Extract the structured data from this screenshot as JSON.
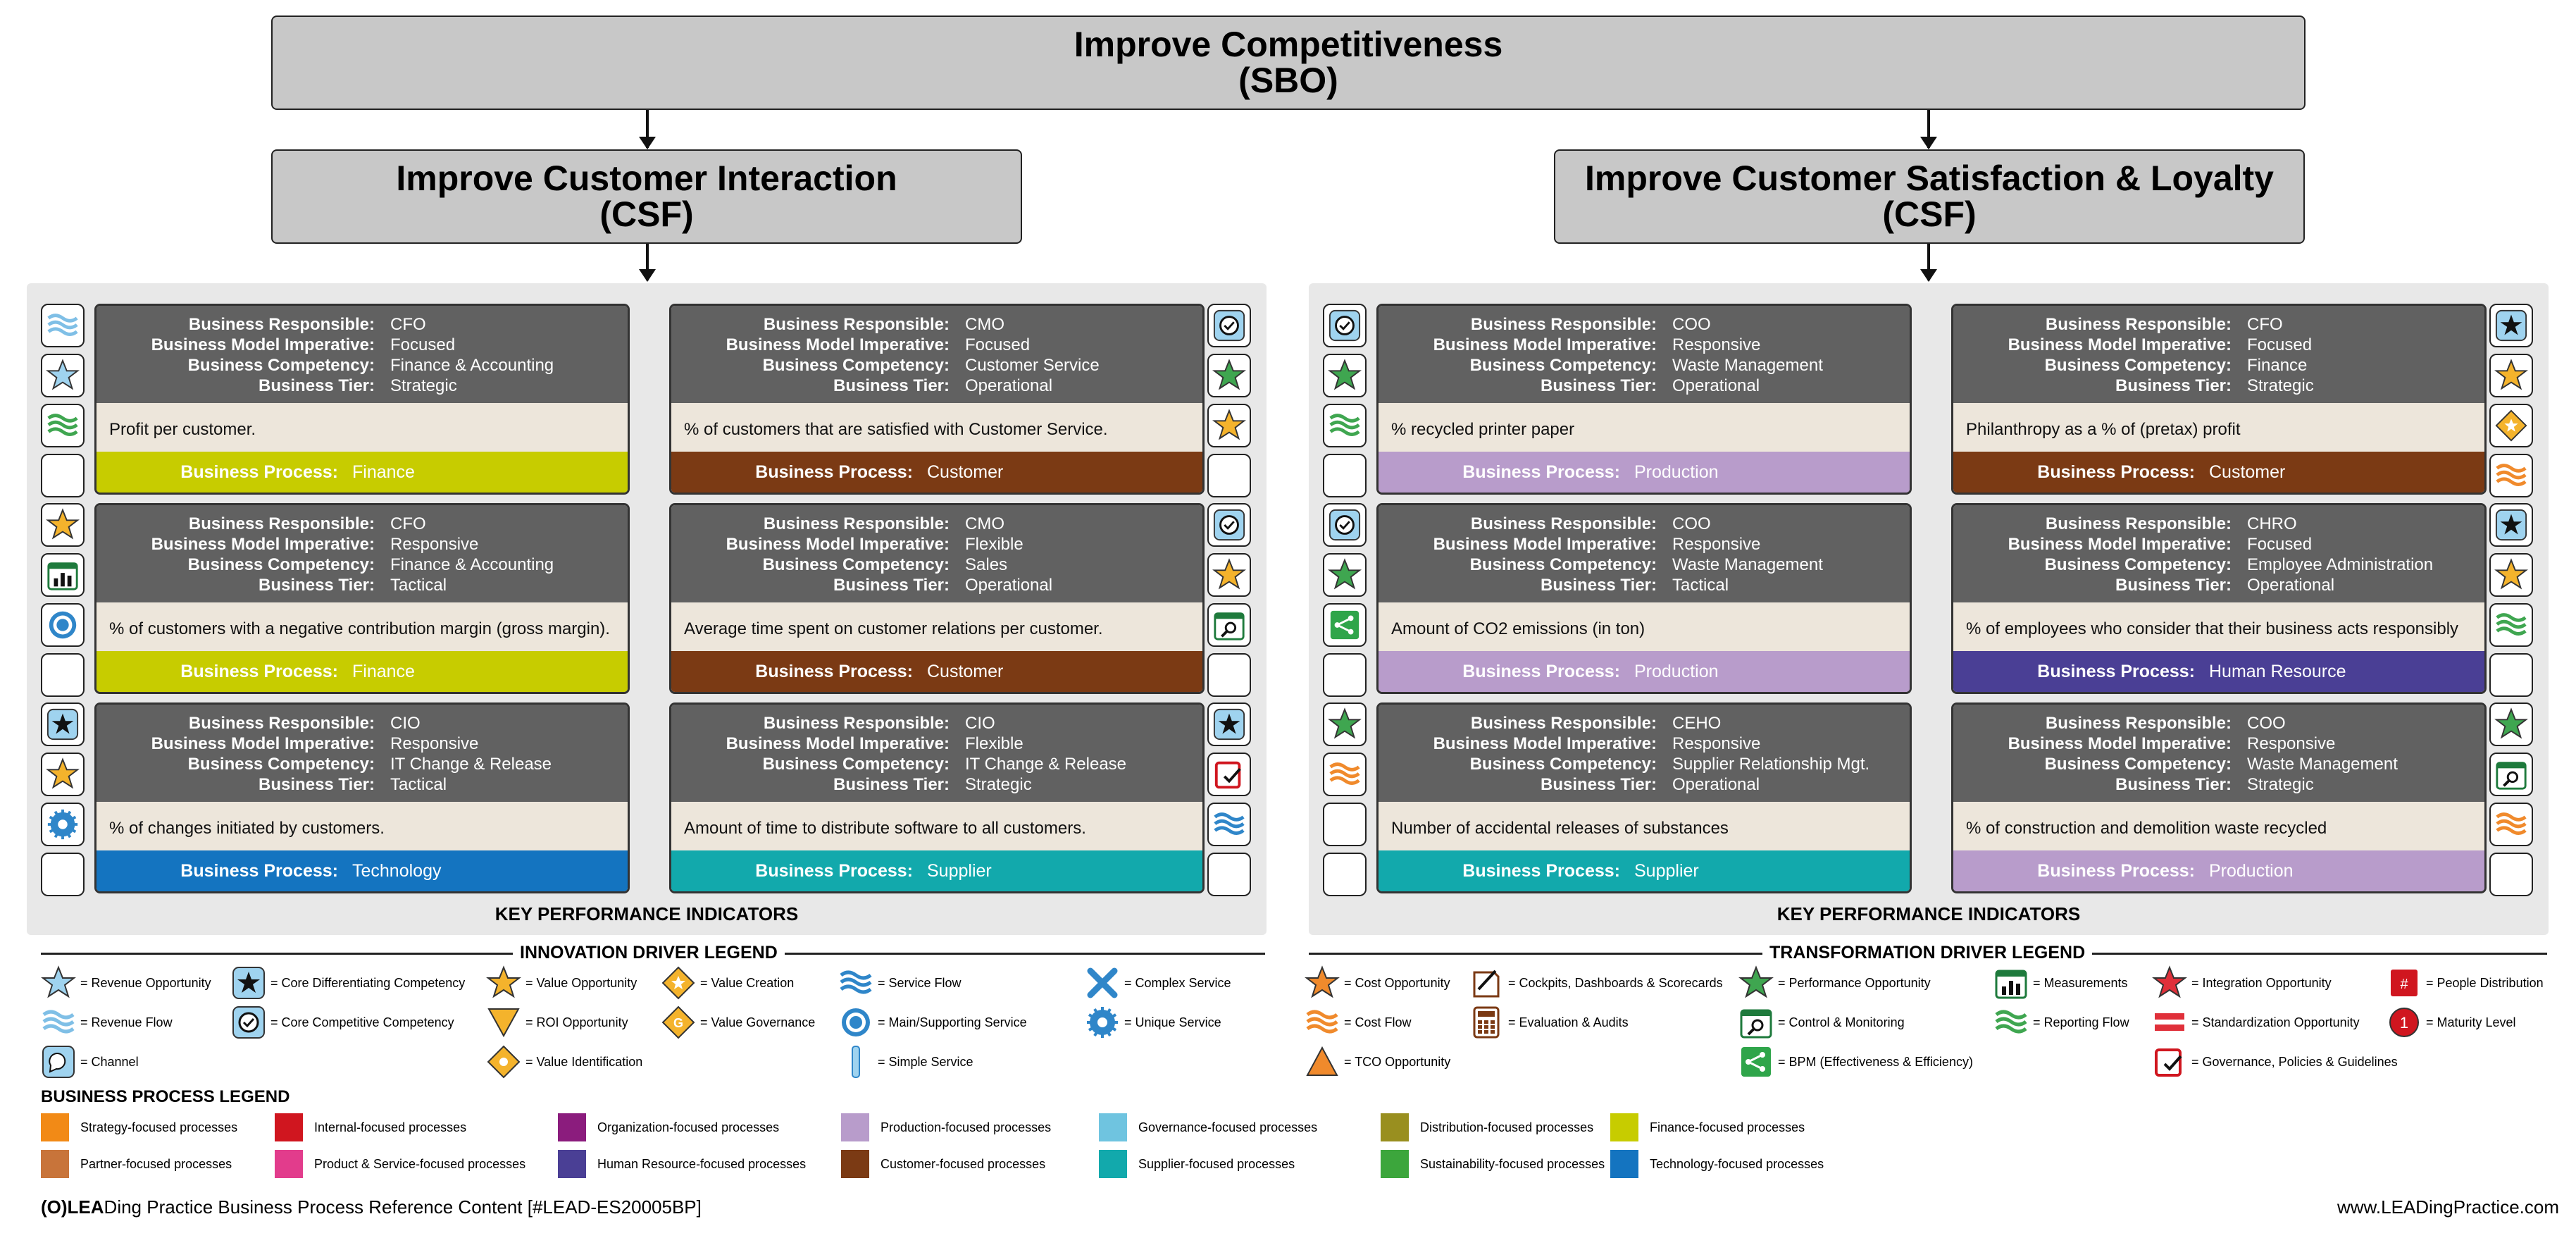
{
  "sbo": {
    "title": "Improve Competitiveness",
    "tag": "(SBO)"
  },
  "csf_left": {
    "title": "Improve Customer Interaction",
    "tag": "(CSF)"
  },
  "csf_right": {
    "title": "Improve Customer Satisfaction & Loyalty",
    "tag": "(CSF)"
  },
  "labels": {
    "responsible": "Business Responsible:",
    "imperative": "Business Model Imperative:",
    "competency": "Business Competency:",
    "tier": "Business Tier:",
    "process": "Business Process:"
  },
  "kpi_title": "KEY PERFORMANCE INDICATORS",
  "cards": [
    {
      "resp": "CFO",
      "imp": "Focused",
      "comp": "Finance & Accounting",
      "tier": "Strategic",
      "kpi": "Profit per customer.",
      "process": "Finance",
      "color": "#c7cc00",
      "icons": [
        "revenue-flow",
        "revenue-opportunity",
        "reporting-flow",
        "empty"
      ]
    },
    {
      "resp": "CMO",
      "imp": "Focused",
      "comp": "Customer Service",
      "tier": "Operational",
      "kpi": "% of customers that are satisfied with Customer Service.",
      "process": "Customer",
      "color": "#7b3a14",
      "icons": [
        "core-competitive",
        "performance-opportunity",
        "value-opportunity",
        "empty"
      ]
    },
    {
      "resp": "CFO",
      "imp": "Responsive",
      "comp": "Finance & Accounting",
      "tier": "Tactical",
      "kpi": "% of customers with a negative contribution margin (gross margin).",
      "process": "Finance",
      "color": "#c7cc00",
      "icons": [
        "value-opportunity",
        "measurements",
        "main-service",
        "empty"
      ]
    },
    {
      "resp": "CMO",
      "imp": "Flexible",
      "comp": "Sales",
      "tier": "Operational",
      "kpi": "Average time spent on customer relations per customer.",
      "process": "Customer",
      "color": "#7b3a14",
      "icons": [
        "core-competitive",
        "value-opportunity",
        "control-monitoring",
        "empty"
      ]
    },
    {
      "resp": "CIO",
      "imp": "Responsive",
      "comp": "IT Change & Release",
      "tier": "Tactical",
      "kpi": "% of changes initiated by customers.",
      "process": "Technology",
      "color": "#1474c0",
      "icons": [
        "core-differentiating",
        "value-opportunity",
        "unique-service",
        "empty"
      ]
    },
    {
      "resp": "CIO",
      "imp": "Flexible",
      "comp": "IT Change & Release",
      "tier": "Strategic",
      "kpi": "Amount of time to distribute software to all customers.",
      "process": "Supplier",
      "color": "#12a9ac",
      "icons": [
        "core-differentiating",
        "governance",
        "service-flow",
        "empty"
      ]
    },
    {
      "resp": "COO",
      "imp": "Responsive",
      "comp": "Waste Management",
      "tier": "Operational",
      "kpi": "% recycled printer paper",
      "process": "Production",
      "color": "#b89ccb",
      "icons": [
        "core-competitive",
        "performance-opportunity",
        "reporting-flow",
        "empty"
      ]
    },
    {
      "resp": "CFO",
      "imp": "Focused",
      "comp": "Finance",
      "tier": "Strategic",
      "kpi": "Philanthropy as a % of (pretax) profit",
      "process": "Customer",
      "color": "#7b3a14",
      "icons": [
        "core-differentiating",
        "value-opportunity",
        "value-creation",
        "cost-flow"
      ]
    },
    {
      "resp": "COO",
      "imp": "Responsive",
      "comp": "Waste Management",
      "tier": "Tactical",
      "kpi": "Amount of CO2 emissions (in ton)",
      "process": "Production",
      "color": "#b89ccb",
      "icons": [
        "core-competitive",
        "performance-opportunity",
        "bpm",
        "empty"
      ]
    },
    {
      "resp": "CHRO",
      "imp": "Focused",
      "comp": "Employee Administration",
      "tier": "Operational",
      "kpi": "% of employees who consider that their business acts responsibly",
      "process": "Human Resource",
      "color": "#4a3f95",
      "icons": [
        "core-differentiating",
        "value-opportunity",
        "reporting-flow",
        "empty"
      ]
    },
    {
      "resp": "CEHO",
      "imp": "Responsive",
      "comp": "Supplier Relationship Mgt.",
      "tier": "Operational",
      "kpi": "Number of accidental releases of substances",
      "process": "Supplier",
      "color": "#12a9ac",
      "icons": [
        "performance-opportunity",
        "cost-flow",
        "empty",
        "empty"
      ]
    },
    {
      "resp": "COO",
      "imp": "Responsive",
      "comp": "Waste Management",
      "tier": "Strategic",
      "kpi": "% of construction and demolition waste recycled",
      "process": "Production",
      "color": "#b89ccb",
      "icons": [
        "performance-opportunity",
        "control-monitoring",
        "cost-flow",
        "empty"
      ]
    }
  ],
  "innovation_legend": {
    "title": "INNOVATION DRIVER LEGEND",
    "items": [
      {
        "icon": "revenue-opportunity",
        "label": "= Revenue Opportunity"
      },
      {
        "icon": "core-differentiating",
        "label": "= Core Differentiating Competency"
      },
      {
        "icon": "value-opportunity",
        "label": "= Value Opportunity"
      },
      {
        "icon": "value-creation",
        "label": "= Value Creation"
      },
      {
        "icon": "service-flow",
        "label": "= Service Flow"
      },
      {
        "icon": "complex-service",
        "label": "= Complex Service"
      },
      {
        "icon": "revenue-flow",
        "label": "= Revenue Flow"
      },
      {
        "icon": "core-competitive",
        "label": "= Core Competitive Competency"
      },
      {
        "icon": "roi-opportunity",
        "label": "= ROI Opportunity"
      },
      {
        "icon": "value-governance",
        "label": "= Value Governance"
      },
      {
        "icon": "main-service",
        "label": "= Main/Supporting Service"
      },
      {
        "icon": "unique-service",
        "label": "= Unique Service"
      },
      {
        "icon": "channel",
        "label": "= Channel"
      },
      {
        "icon": "value-identification",
        "label": "= Value Identification"
      },
      {
        "icon": "simple-service",
        "label": "= Simple Service"
      }
    ]
  },
  "transformation_legend": {
    "title": "TRANSFORMATION DRIVER LEGEND",
    "items": [
      {
        "icon": "cost-opportunity",
        "label": "= Cost Opportunity"
      },
      {
        "icon": "cockpits",
        "label": "= Cockpits, Dashboards & Scorecards"
      },
      {
        "icon": "performance-opportunity",
        "label": "= Performance Opportunity"
      },
      {
        "icon": "measurements",
        "label": "= Measurements"
      },
      {
        "icon": "integration-opportunity",
        "label": "= Integration Opportunity"
      },
      {
        "icon": "people-distribution",
        "label": "= People Distribution"
      },
      {
        "icon": "cost-flow",
        "label": "= Cost Flow"
      },
      {
        "icon": "evaluation",
        "label": "= Evaluation & Audits"
      },
      {
        "icon": "control-monitoring",
        "label": "= Control & Monitoring"
      },
      {
        "icon": "reporting-flow",
        "label": "= Reporting Flow"
      },
      {
        "icon": "standardization",
        "label": "= Standardization Opportunity"
      },
      {
        "icon": "maturity-level",
        "label": "= Maturity Level"
      },
      {
        "icon": "tco-opportunity",
        "label": "= TCO Opportunity"
      },
      {
        "icon": "bpm",
        "label": "= BPM (Effectiveness & Efficiency)"
      },
      {
        "icon": "governance",
        "label": "= Governance, Policies & Guidelines"
      }
    ]
  },
  "bp_legend": {
    "title": "BUSINESS PROCESS LEGEND",
    "items": [
      {
        "color": "#f28a16",
        "label": "Strategy-focused processes"
      },
      {
        "color": "#d0161f",
        "label": "Internal-focused processes"
      },
      {
        "color": "#8b1c7d",
        "label": "Organization-focused processes"
      },
      {
        "color": "#b89ccb",
        "label": "Production-focused processes"
      },
      {
        "color": "#6fc4e0",
        "label": "Governance-focused processes"
      },
      {
        "color": "#998f1f",
        "label": "Distribution-focused processes"
      },
      {
        "color": "#c7cc00",
        "label": "Finance-focused processes"
      },
      {
        "color": "#c8743a",
        "label": "Partner-focused processes"
      },
      {
        "color": "#e23c8c",
        "label": "Product & Service-focused processes"
      },
      {
        "color": "#4a3f95",
        "label": "Human Resource-focused processes"
      },
      {
        "color": "#7b3a14",
        "label": "Customer-focused processes"
      },
      {
        "color": "#12a9ac",
        "label": "Supplier-focused processes"
      },
      {
        "color": "#3ca63c",
        "label": "Sustainability-focused processes"
      },
      {
        "color": "#1474c0",
        "label": "Technology-focused processes"
      }
    ]
  },
  "footer": {
    "left": "Ding Practice Business Process Reference Content [#LEAD-ES20005BP]",
    "right": "www.LEADingPractice.com",
    "logo_text": "(O)LEA"
  }
}
